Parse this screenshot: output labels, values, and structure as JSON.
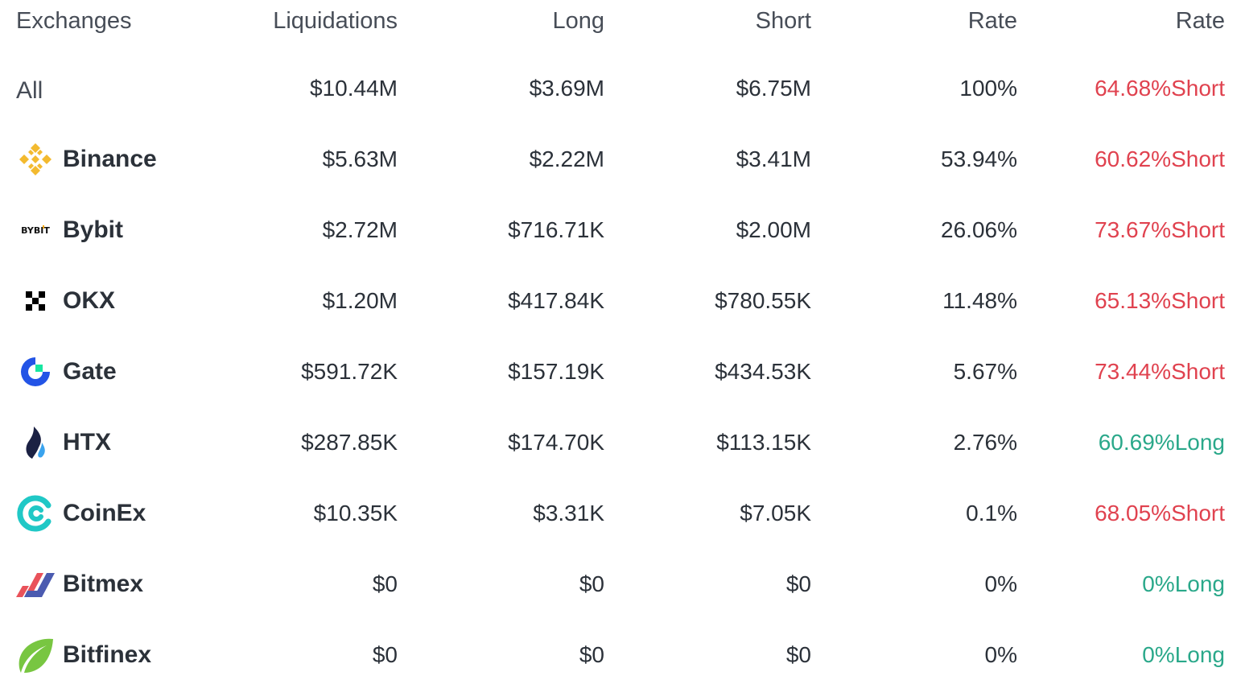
{
  "header": {
    "exchanges": "Exchanges",
    "liquidations": "Liquidations",
    "long": "Long",
    "short": "Short",
    "rate1": "Rate",
    "rate2": "Rate"
  },
  "colors": {
    "short": "#e0424f",
    "long": "#2aa88a",
    "binance": "#f3ba2f",
    "gate": "#2354e6",
    "htx": "#1b2143",
    "coinex": "#20c8c6",
    "bitmex_red": "#e9525a",
    "bitmex_blue": "#4b5bb0",
    "bitfinex": "#78c641"
  },
  "rows": [
    {
      "name": "All",
      "icon": "",
      "liquidations": "$10.44M",
      "long": "$3.69M",
      "short": "$6.75M",
      "rate": "100%",
      "side_rate": "64.68%Short",
      "side": "short"
    },
    {
      "name": "Binance",
      "icon": "binance-logo-icon",
      "liquidations": "$5.63M",
      "long": "$2.22M",
      "short": "$3.41M",
      "rate": "53.94%",
      "side_rate": "60.62%Short",
      "side": "short"
    },
    {
      "name": "Bybit",
      "icon": "bybit-logo-icon",
      "liquidations": "$2.72M",
      "long": "$716.71K",
      "short": "$2.00M",
      "rate": "26.06%",
      "side_rate": "73.67%Short",
      "side": "short"
    },
    {
      "name": "OKX",
      "icon": "okx-logo-icon",
      "liquidations": "$1.20M",
      "long": "$417.84K",
      "short": "$780.55K",
      "rate": "11.48%",
      "side_rate": "65.13%Short",
      "side": "short"
    },
    {
      "name": "Gate",
      "icon": "gate-logo-icon",
      "liquidations": "$591.72K",
      "long": "$157.19K",
      "short": "$434.53K",
      "rate": "5.67%",
      "side_rate": "73.44%Short",
      "side": "short"
    },
    {
      "name": "HTX",
      "icon": "htx-logo-icon",
      "liquidations": "$287.85K",
      "long": "$174.70K",
      "short": "$113.15K",
      "rate": "2.76%",
      "side_rate": "60.69%Long",
      "side": "long"
    },
    {
      "name": "CoinEx",
      "icon": "coinex-logo-icon",
      "liquidations": "$10.35K",
      "long": "$3.31K",
      "short": "$7.05K",
      "rate": "0.1%",
      "side_rate": "68.05%Short",
      "side": "short"
    },
    {
      "name": "Bitmex",
      "icon": "bitmex-logo-icon",
      "liquidations": "$0",
      "long": "$0",
      "short": "$0",
      "rate": "0%",
      "side_rate": "0%Long",
      "side": "long"
    },
    {
      "name": "Bitfinex",
      "icon": "bitfinex-logo-icon",
      "liquidations": "$0",
      "long": "$0",
      "short": "$0",
      "rate": "0%",
      "side_rate": "0%Long",
      "side": "long"
    }
  ],
  "logo_text": {
    "bybit": "BYBIT"
  }
}
